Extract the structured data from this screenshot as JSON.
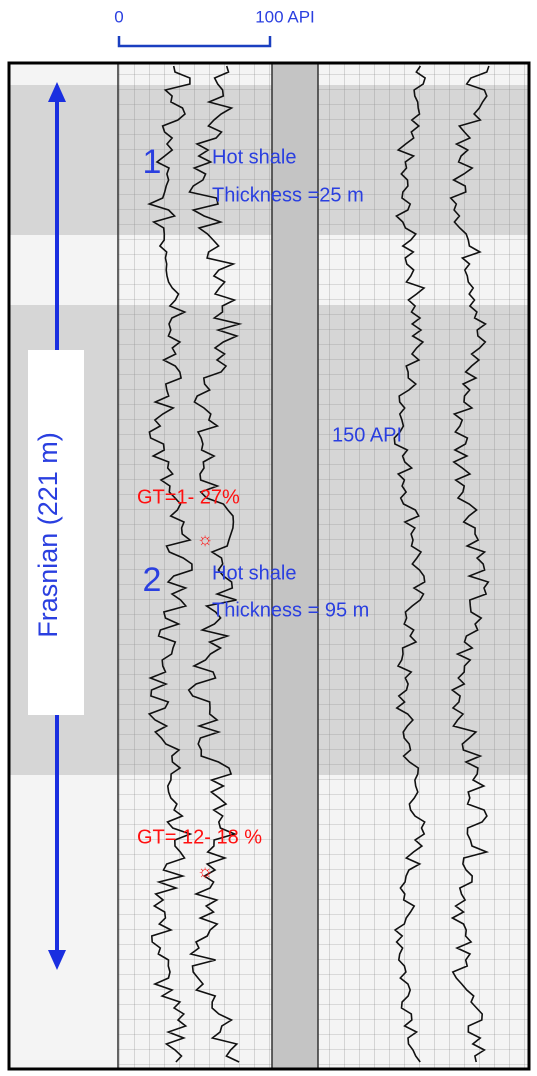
{
  "scale": {
    "left": "0",
    "right": "100 API"
  },
  "zone1": {
    "number": "1",
    "label": "Hot shale",
    "thickness": "Thickness =25 m"
  },
  "marker": "150 API",
  "gt1": "GT=1- 27%",
  "zone2": {
    "number": "2",
    "label": "Hot shale",
    "thickness": "Thickness = 95 m"
  },
  "gt2": "GT= 12- 18 %",
  "formation": "Frasnian (221 m)"
}
